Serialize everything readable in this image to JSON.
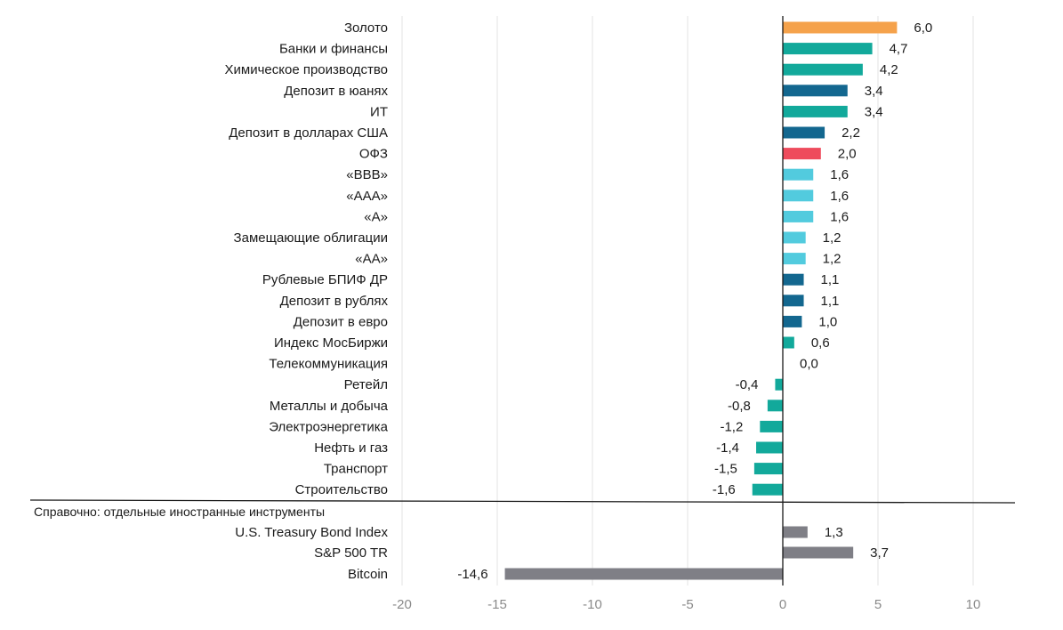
{
  "chart_data": {
    "type": "bar",
    "orientation": "horizontal",
    "xlim": [
      -20,
      10
    ],
    "xticks": [
      -20,
      -15,
      -10,
      -5,
      0,
      5,
      10
    ],
    "xtick_labels": [
      "-20",
      "-15",
      "-10",
      "-5",
      "0",
      "5",
      "10"
    ],
    "grid": "vertical",
    "section_note": "Справочно: отдельные иностранные инструменты",
    "categories": [
      {
        "label": "Золото",
        "value": 6.0,
        "value_label": "6,0",
        "color": "#F5A24B"
      },
      {
        "label": "Банки и финансы",
        "value": 4.7,
        "value_label": "4,7",
        "color": "#12A99B"
      },
      {
        "label": "Химическое производство",
        "value": 4.2,
        "value_label": "4,2",
        "color": "#12A99B"
      },
      {
        "label": "Депозит в юанях",
        "value": 3.4,
        "value_label": "3,4",
        "color": "#13678F"
      },
      {
        "label": "ИТ",
        "value": 3.4,
        "value_label": "3,4",
        "color": "#12A99B"
      },
      {
        "label": "Депозит в долларах США",
        "value": 2.2,
        "value_label": "2,2",
        "color": "#13678F"
      },
      {
        "label": "ОФЗ",
        "value": 2.0,
        "value_label": "2,0",
        "color": "#EE4B5C"
      },
      {
        "label": "«BBB»",
        "value": 1.6,
        "value_label": "1,6",
        "color": "#52CBDE"
      },
      {
        "label": "«AAA»",
        "value": 1.6,
        "value_label": "1,6",
        "color": "#52CBDE"
      },
      {
        "label": "«A»",
        "value": 1.6,
        "value_label": "1,6",
        "color": "#52CBDE"
      },
      {
        "label": "Замещающие облигации",
        "value": 1.2,
        "value_label": "1,2",
        "color": "#52CBDE"
      },
      {
        "label": "«AA»",
        "value": 1.2,
        "value_label": "1,2",
        "color": "#52CBDE"
      },
      {
        "label": "Рублевые БПИФ ДР",
        "value": 1.1,
        "value_label": "1,1",
        "color": "#13678F"
      },
      {
        "label": "Депозит в рублях",
        "value": 1.1,
        "value_label": "1,1",
        "color": "#13678F"
      },
      {
        "label": "Депозит в евро",
        "value": 1.0,
        "value_label": "1,0",
        "color": "#13678F"
      },
      {
        "label": "Индекс МосБиржи",
        "value": 0.6,
        "value_label": "0,6",
        "color": "#12A99B"
      },
      {
        "label": "Телекоммуникация",
        "value": 0.0,
        "value_label": "0,0",
        "color": "#12A99B"
      },
      {
        "label": "Ретейл",
        "value": -0.4,
        "value_label": "-0,4",
        "color": "#12A99B"
      },
      {
        "label": "Металлы и добыча",
        "value": -0.8,
        "value_label": "-0,8",
        "color": "#12A99B"
      },
      {
        "label": "Электроэнергетика",
        "value": -1.2,
        "value_label": "-1,2",
        "color": "#12A99B"
      },
      {
        "label": "Нефть и газ",
        "value": -1.4,
        "value_label": "-1,4",
        "color": "#12A99B"
      },
      {
        "label": "Транспорт",
        "value": -1.5,
        "value_label": "-1,5",
        "color": "#12A99B"
      },
      {
        "label": "Строительство",
        "value": -1.6,
        "value_label": "-1,6",
        "color": "#12A99B"
      }
    ],
    "reference_categories": [
      {
        "label": "U.S. Treasury Bond Index",
        "value": 1.3,
        "value_label": "1,3",
        "color": "#7F7F86"
      },
      {
        "label": "S&P 500 TR",
        "value": 3.7,
        "value_label": "3,7",
        "color": "#7F7F86"
      },
      {
        "label": "Bitcoin",
        "value": -14.6,
        "value_label": "-14,6",
        "color": "#7F7F86"
      }
    ],
    "colors": {
      "grid": "#E3E3E3",
      "axis": "#1a1a1a",
      "tick_text": "#8a8a8a"
    }
  }
}
